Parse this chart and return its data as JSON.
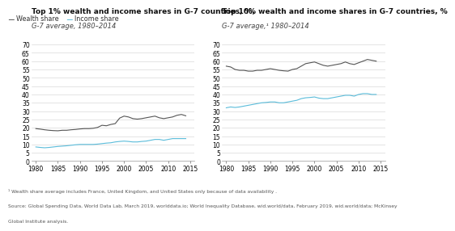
{
  "title_left1": "Top 1% wealth and income shares in G-7 countries, %,",
  "title_left2": "G-7 average, 1980–2014",
  "title_right1": "Top 10% wealth and income shares in G-7 countries, %",
  "title_right2": "G-7 average,¹ 1980–2014",
  "footnote1": "¹ Wealth share average includes France, United Kingdom, and United States only because of data availability .",
  "footnote2": "Source: Global Spending Data, World Data Lab, March 2019, worlddata.io; World Inequality Database, wid.world/data, February 2019, wid.world/data; McKinsey",
  "footnote3": "Global Institute analysis.",
  "legend_wealth": "Wealth share",
  "legend_income": "Income share",
  "years": [
    1980,
    1981,
    1982,
    1983,
    1984,
    1985,
    1986,
    1987,
    1988,
    1989,
    1990,
    1991,
    1992,
    1993,
    1994,
    1995,
    1996,
    1997,
    1998,
    1999,
    2000,
    2001,
    2002,
    2003,
    2004,
    2005,
    2006,
    2007,
    2008,
    2009,
    2010,
    2011,
    2012,
    2013,
    2014
  ],
  "left_wealth": [
    19.5,
    19.2,
    18.8,
    18.5,
    18.3,
    18.2,
    18.5,
    18.5,
    18.8,
    19.0,
    19.3,
    19.5,
    19.5,
    19.7,
    20.2,
    21.5,
    21.2,
    22.0,
    22.5,
    25.8,
    27.0,
    26.5,
    25.5,
    25.2,
    25.5,
    26.0,
    26.5,
    27.0,
    26.0,
    25.5,
    26.0,
    26.5,
    27.5,
    28.0,
    27.2
  ],
  "left_income": [
    8.5,
    8.2,
    8.0,
    8.2,
    8.5,
    8.8,
    9.0,
    9.2,
    9.5,
    9.8,
    10.0,
    10.0,
    10.0,
    10.0,
    10.2,
    10.5,
    10.8,
    11.0,
    11.5,
    11.8,
    12.0,
    11.8,
    11.5,
    11.5,
    11.8,
    12.0,
    12.5,
    13.0,
    13.0,
    12.5,
    13.0,
    13.5,
    13.5,
    13.5,
    13.5
  ],
  "right_wealth": [
    57.0,
    56.5,
    55.0,
    54.5,
    54.5,
    54.0,
    54.0,
    54.5,
    54.5,
    55.0,
    55.5,
    55.0,
    54.5,
    54.2,
    54.0,
    55.0,
    55.5,
    57.0,
    58.5,
    59.0,
    59.5,
    58.5,
    57.5,
    57.0,
    57.5,
    58.0,
    58.5,
    59.5,
    58.5,
    58.0,
    59.0,
    60.0,
    61.0,
    60.5,
    60.0
  ],
  "right_income": [
    32.0,
    32.5,
    32.2,
    32.5,
    33.0,
    33.5,
    34.0,
    34.5,
    35.0,
    35.2,
    35.5,
    35.5,
    35.0,
    35.0,
    35.5,
    36.0,
    36.5,
    37.5,
    38.0,
    38.2,
    38.5,
    37.8,
    37.5,
    37.5,
    38.0,
    38.5,
    39.0,
    39.5,
    39.5,
    39.0,
    40.0,
    40.5,
    40.5,
    40.0,
    40.0
  ],
  "color_wealth": "#555555",
  "color_income": "#5abcda",
  "ylim": [
    0,
    72
  ],
  "yticks": [
    0,
    5,
    10,
    15,
    20,
    25,
    30,
    35,
    40,
    45,
    50,
    55,
    60,
    65,
    70
  ],
  "xticks": [
    1980,
    1985,
    1990,
    1995,
    2000,
    2005,
    2010,
    2015
  ],
  "background_color": "#ffffff",
  "title_fontsize": 6.5,
  "tick_fontsize": 5.5,
  "footnote_fontsize": 4.3,
  "legend_fontsize": 5.8
}
